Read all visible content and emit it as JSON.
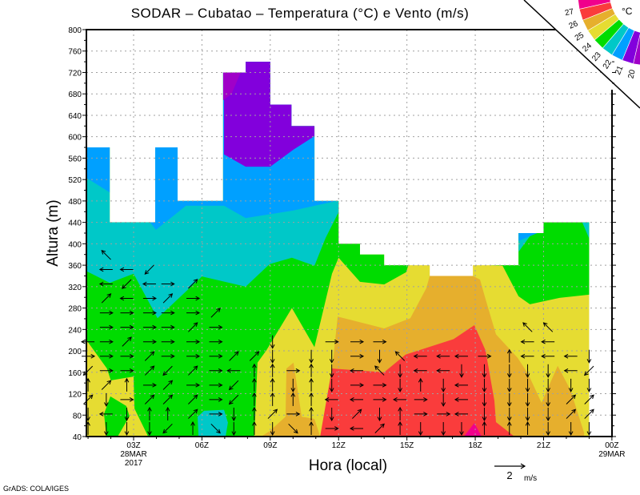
{
  "footer": "GrADS: COLA/IGES",
  "chart_data": {
    "type": "contour-filled with wind vectors",
    "title": "SODAR – Cubatao – Temperatura (°C) e Vento (m/s)",
    "xlabel": "Hora (local)",
    "ylabel": "Altura (m)",
    "ylim": [
      40,
      800
    ],
    "xlim_hours": [
      0.93,
      24
    ],
    "grid": true,
    "y_ticks": [
      40,
      80,
      120,
      160,
      200,
      240,
      280,
      320,
      360,
      400,
      440,
      480,
      520,
      560,
      600,
      640,
      680,
      720,
      760,
      800
    ],
    "x_ticks": [
      {
        "hour": 3,
        "label": "03Z",
        "sub1": "28MAR",
        "sub2": "2017"
      },
      {
        "hour": 6,
        "label": "06Z"
      },
      {
        "hour": 9,
        "label": "09Z"
      },
      {
        "hour": 12,
        "label": "12Z"
      },
      {
        "hour": 15,
        "label": "15Z"
      },
      {
        "hour": 18,
        "label": "18Z"
      },
      {
        "hour": 21,
        "label": "21Z"
      },
      {
        "hour": 24,
        "label": "00Z",
        "sub1": "29MAR"
      }
    ],
    "colorbar": {
      "unit": "°C",
      "labels": [
        "27",
        "26",
        "25",
        "24",
        "23",
        "22",
        "21",
        "20"
      ],
      "colors": [
        "#f0008c",
        "#fa3c3c",
        "#e6af2d",
        "#e6dc32",
        "#00dc00",
        "#00c8c8",
        "#00a0ff",
        "#8200dc",
        "#a000c8"
      ]
    },
    "reference_vector": {
      "value": "2",
      "unit": "m/s"
    },
    "data_top": [
      [
        0.93,
        580
      ],
      [
        1.95,
        440
      ],
      [
        3.95,
        580
      ],
      [
        4.93,
        480
      ],
      [
        6.93,
        720
      ],
      [
        7.92,
        740
      ],
      [
        9,
        660
      ],
      [
        9.93,
        620
      ],
      [
        10.94,
        480
      ],
      [
        12,
        400
      ],
      [
        12.94,
        380
      ],
      [
        14,
        360
      ],
      [
        16,
        340
      ],
      [
        17.9,
        360
      ],
      [
        19.9,
        420
      ],
      [
        21,
        440
      ],
      [
        23,
        null
      ]
    ],
    "regions": [
      {
        "temp": "23-24",
        "color": "#00dc00",
        "poly": [
          [
            0.93,
            220
          ],
          [
            1.83,
            167
          ],
          [
            2.0,
            145
          ],
          [
            3,
            152
          ],
          [
            3.04,
            92
          ],
          [
            3.64,
            40
          ],
          [
            8.3,
            40
          ],
          [
            8.44,
            178
          ],
          [
            8.83,
            201
          ],
          [
            9.95,
            280
          ],
          [
            10.94,
            207
          ],
          [
            11.71,
            344
          ],
          [
            12,
            374
          ],
          [
            12.94,
            329
          ],
          [
            14,
            324
          ],
          [
            14.97,
            347
          ],
          [
            15.2,
            380
          ],
          [
            15.2,
            800
          ],
          [
            0.93,
            800
          ]
        ]
      },
      {
        "temp": "23-24",
        "color": "#00dc00",
        "poly": [
          [
            18.67,
            360
          ],
          [
            19.2,
            359
          ],
          [
            19.9,
            302
          ],
          [
            20.4,
            287
          ],
          [
            21.7,
            299
          ],
          [
            23,
            305
          ],
          [
            24,
            305
          ],
          [
            24,
            800
          ],
          [
            18.67,
            800
          ]
        ]
      },
      {
        "temp": "23-24",
        "color": "#00dc00",
        "poly": [
          [
            1.81,
            40
          ],
          [
            1.7,
            82
          ],
          [
            1.98,
            115
          ],
          [
            2.68,
            97
          ],
          [
            2.82,
            78
          ],
          [
            2.3,
            40
          ]
        ]
      },
      {
        "temp": "22-23",
        "color": "#00c8c8",
        "poly": [
          [
            0.93,
            349
          ],
          [
            1.95,
            327
          ],
          [
            3,
            344
          ],
          [
            4.05,
            261
          ],
          [
            6,
            339
          ],
          [
            7.92,
            320
          ],
          [
            8.97,
            362
          ],
          [
            9.95,
            374
          ],
          [
            10.94,
            359
          ],
          [
            11.43,
            411
          ],
          [
            12,
            459
          ],
          [
            12,
            800
          ],
          [
            0.93,
            800
          ]
        ]
      },
      {
        "temp": "22-23",
        "color": "#00c8c8",
        "poly": [
          [
            19.9,
            385
          ],
          [
            20.5,
            420
          ],
          [
            20.5,
            440
          ],
          [
            19.9,
            440
          ]
        ]
      },
      {
        "temp": "22-23",
        "color": "#00c8c8",
        "poly": [
          [
            22.7,
            440
          ],
          [
            23,
            410
          ],
          [
            23,
            440
          ]
        ]
      },
      {
        "temp": "22-23",
        "color": "#00c8c8",
        "poly": [
          [
            5.81,
            77
          ],
          [
            6.09,
            88
          ],
          [
            6.97,
            90
          ],
          [
            7.14,
            66
          ],
          [
            7.04,
            40
          ],
          [
            5.85,
            40
          ]
        ]
      },
      {
        "temp": "21-22",
        "color": "#00a0ff",
        "poly": [
          [
            0.93,
            523
          ],
          [
            1.95,
            496
          ],
          [
            3,
            480
          ],
          [
            3.98,
            426
          ],
          [
            5.3,
            471
          ],
          [
            6.97,
            471
          ],
          [
            7.92,
            448
          ],
          [
            10,
            462
          ],
          [
            12,
            481
          ],
          [
            12,
            800
          ],
          [
            0.93,
            800
          ]
        ]
      },
      {
        "temp": "21-22",
        "color": "#00a0ff",
        "poly": [
          [
            19.9,
            405
          ],
          [
            21,
            425
          ],
          [
            21,
            445
          ],
          [
            19.9,
            445
          ]
        ]
      },
      {
        "temp": "20-21",
        "color": "#8200dc",
        "poly": [
          [
            6.97,
            567
          ],
          [
            7.92,
            544
          ],
          [
            9,
            544
          ],
          [
            10.02,
            576
          ],
          [
            10.94,
            601
          ],
          [
            10.94,
            800
          ],
          [
            6.97,
            800
          ]
        ]
      },
      {
        "temp": "<20",
        "color": "#a000c8",
        "poly": [
          [
            6.93,
            720
          ],
          [
            7.7,
            720
          ],
          [
            7.3,
            680
          ],
          [
            6.93,
            668
          ]
        ]
      },
      {
        "temp": "25-26",
        "color": "#e6af2d",
        "poly": [
          [
            11.19,
            40
          ],
          [
            11.72,
            167
          ],
          [
            11.96,
            264
          ],
          [
            14,
            242
          ],
          [
            15.15,
            261
          ],
          [
            15.85,
            317
          ],
          [
            16,
            340
          ],
          [
            16,
            800
          ],
          [
            17.9,
            800
          ],
          [
            17.9,
            340
          ],
          [
            18.21,
            333
          ],
          [
            18.45,
            297
          ],
          [
            18.91,
            231
          ],
          [
            19.86,
            187
          ],
          [
            20.32,
            157
          ],
          [
            20.91,
            103
          ],
          [
            21.62,
            172
          ],
          [
            22.18,
            127
          ],
          [
            22.78,
            47
          ],
          [
            22.78,
            40
          ]
        ]
      },
      {
        "temp": "25-26",
        "color": "#e6af2d",
        "poly": [
          [
            8.6,
            40
          ],
          [
            8.97,
            50
          ],
          [
            9.67,
            77
          ],
          [
            9.71,
            167
          ],
          [
            10.02,
            178
          ],
          [
            10.38,
            77
          ],
          [
            10.94,
            73
          ],
          [
            11.19,
            40
          ]
        ]
      },
      {
        "temp": "26-27",
        "color": "#fa3c3c",
        "poly": [
          [
            11.19,
            40
          ],
          [
            11.71,
            167
          ],
          [
            14,
            160
          ],
          [
            14.94,
            193
          ],
          [
            17.05,
            222
          ],
          [
            17.96,
            248
          ],
          [
            18.45,
            201
          ],
          [
            18.84,
            107
          ],
          [
            18.91,
            67
          ],
          [
            19.72,
            40
          ]
        ]
      },
      {
        "temp": ">27",
        "color": "#f0008c",
        "poly": [
          [
            17.5,
            40
          ],
          [
            17.96,
            65
          ],
          [
            18.28,
            40
          ]
        ]
      }
    ],
    "base_color": "#e6dc32",
    "wind_levels_start_m": 55,
    "wind_levels_step_m": 27,
    "wind": [
      {
        "hour": 1.0,
        "dirs": "N S NE N SW E W"
      },
      {
        "hour": 1.8,
        "dirs": "S W S NE E E E E E NE W W NW"
      },
      {
        "hour": 2.7,
        "dirs": "S S E N E E NE E E W SW W"
      },
      {
        "hour": 3.7,
        "dirs": "S N NE E NE NE E E E E W SW"
      },
      {
        "hour": 4.5,
        "dirs": "SW N NE NE SW E E E E NE E"
      },
      {
        "hour": 5.6,
        "dirs": "N NE NE E NE E E NE E E NE"
      },
      {
        "hour": 6.6,
        "dirs": "SE E E E E E E E NE"
      },
      {
        "hour": 7.4,
        "dirs": "S S SW SW W NE"
      },
      {
        "hour": 8.3,
        "dirs": "N N N N N NE"
      },
      {
        "hour": 9.1,
        "dirs": "S NE N N N S S"
      },
      {
        "hour": 10.0,
        "dirs": "SE E N S E"
      },
      {
        "hour": 10.8,
        "dirs": "N N N N N S"
      },
      {
        "hour": 11.7,
        "dirs": "E S W S S S E"
      },
      {
        "hour": 12.8,
        "dirs": "W NE W E W E E"
      },
      {
        "hour": 13.8,
        "dirs": "NE S E E NW S E"
      },
      {
        "hour": 14.7,
        "dirs": "N N W S S NW"
      },
      {
        "hour": 15.6,
        "dirs": "S E E N W W"
      },
      {
        "hour": 16.6,
        "dirs": "S E S S W W"
      },
      {
        "hour": 17.4,
        "dirs": "S W W W S W"
      },
      {
        "hour": 18.4,
        "dirs": "N S S S S E"
      },
      {
        "hour": 19.5,
        "dirs": "N S S S S N"
      },
      {
        "hour": 20.3,
        "dirs": "N S S S S W W NW"
      },
      {
        "hour": 21.2,
        "dirs": "S S S S S W W NW"
      },
      {
        "hour": 22.2,
        "dirs": "S NE NE S W W"
      },
      {
        "hour": 23.0,
        "dirs": "S NE NE S SW S"
      }
    ]
  }
}
